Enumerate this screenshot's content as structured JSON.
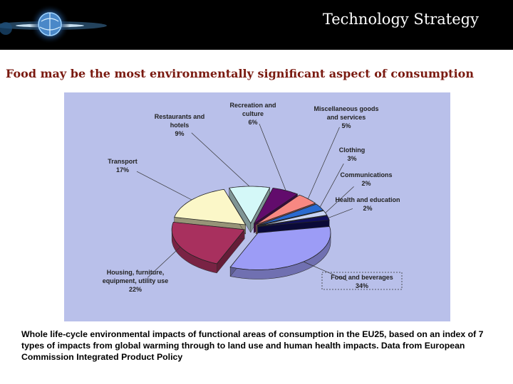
{
  "header": {
    "title": "Technology Strategy"
  },
  "slide": {
    "title": "Food may be the most environmentally significant aspect of consumption",
    "caption": "Whole life-cycle environmental impacts of functional areas of consumption in the EU25, based on an index of 7 types of impacts from global warming through to land use and human health impacts. Data from European Commission Integrated Product Policy"
  },
  "chart_data": {
    "type": "pie",
    "style": "exploded 3D pie",
    "slices": [
      {
        "label_lines": [
          "Food and beverages",
          "34%"
        ],
        "value": 34,
        "color": "#9c9cf6"
      },
      {
        "label_lines": [
          "Housing, furniture,",
          "equipment, utility use",
          "22%"
        ],
        "value": 22,
        "color": "#a8305e"
      },
      {
        "label_lines": [
          "Transport",
          "17%"
        ],
        "value": 17,
        "color": "#fbf7c8"
      },
      {
        "label_lines": [
          "Restaurants and",
          "hotels",
          "9%"
        ],
        "value": 9,
        "color": "#d4f8f8"
      },
      {
        "label_lines": [
          "Recreation and",
          "culture",
          "6%"
        ],
        "value": 6,
        "color": "#620c6c"
      },
      {
        "label_lines": [
          "Miscellaneous goods",
          "and services",
          "5%"
        ],
        "value": 5,
        "color": "#f88882"
      },
      {
        "label_lines": [
          "Clothing",
          "3%"
        ],
        "value": 3,
        "color": "#2a6ad0"
      },
      {
        "label_lines": [
          "Communications",
          "2%"
        ],
        "value": 2,
        "color": "#c8d4f4"
      },
      {
        "label_lines": [
          "Health and education",
          "2%"
        ],
        "value": 2,
        "color": "#12105e"
      }
    ]
  }
}
